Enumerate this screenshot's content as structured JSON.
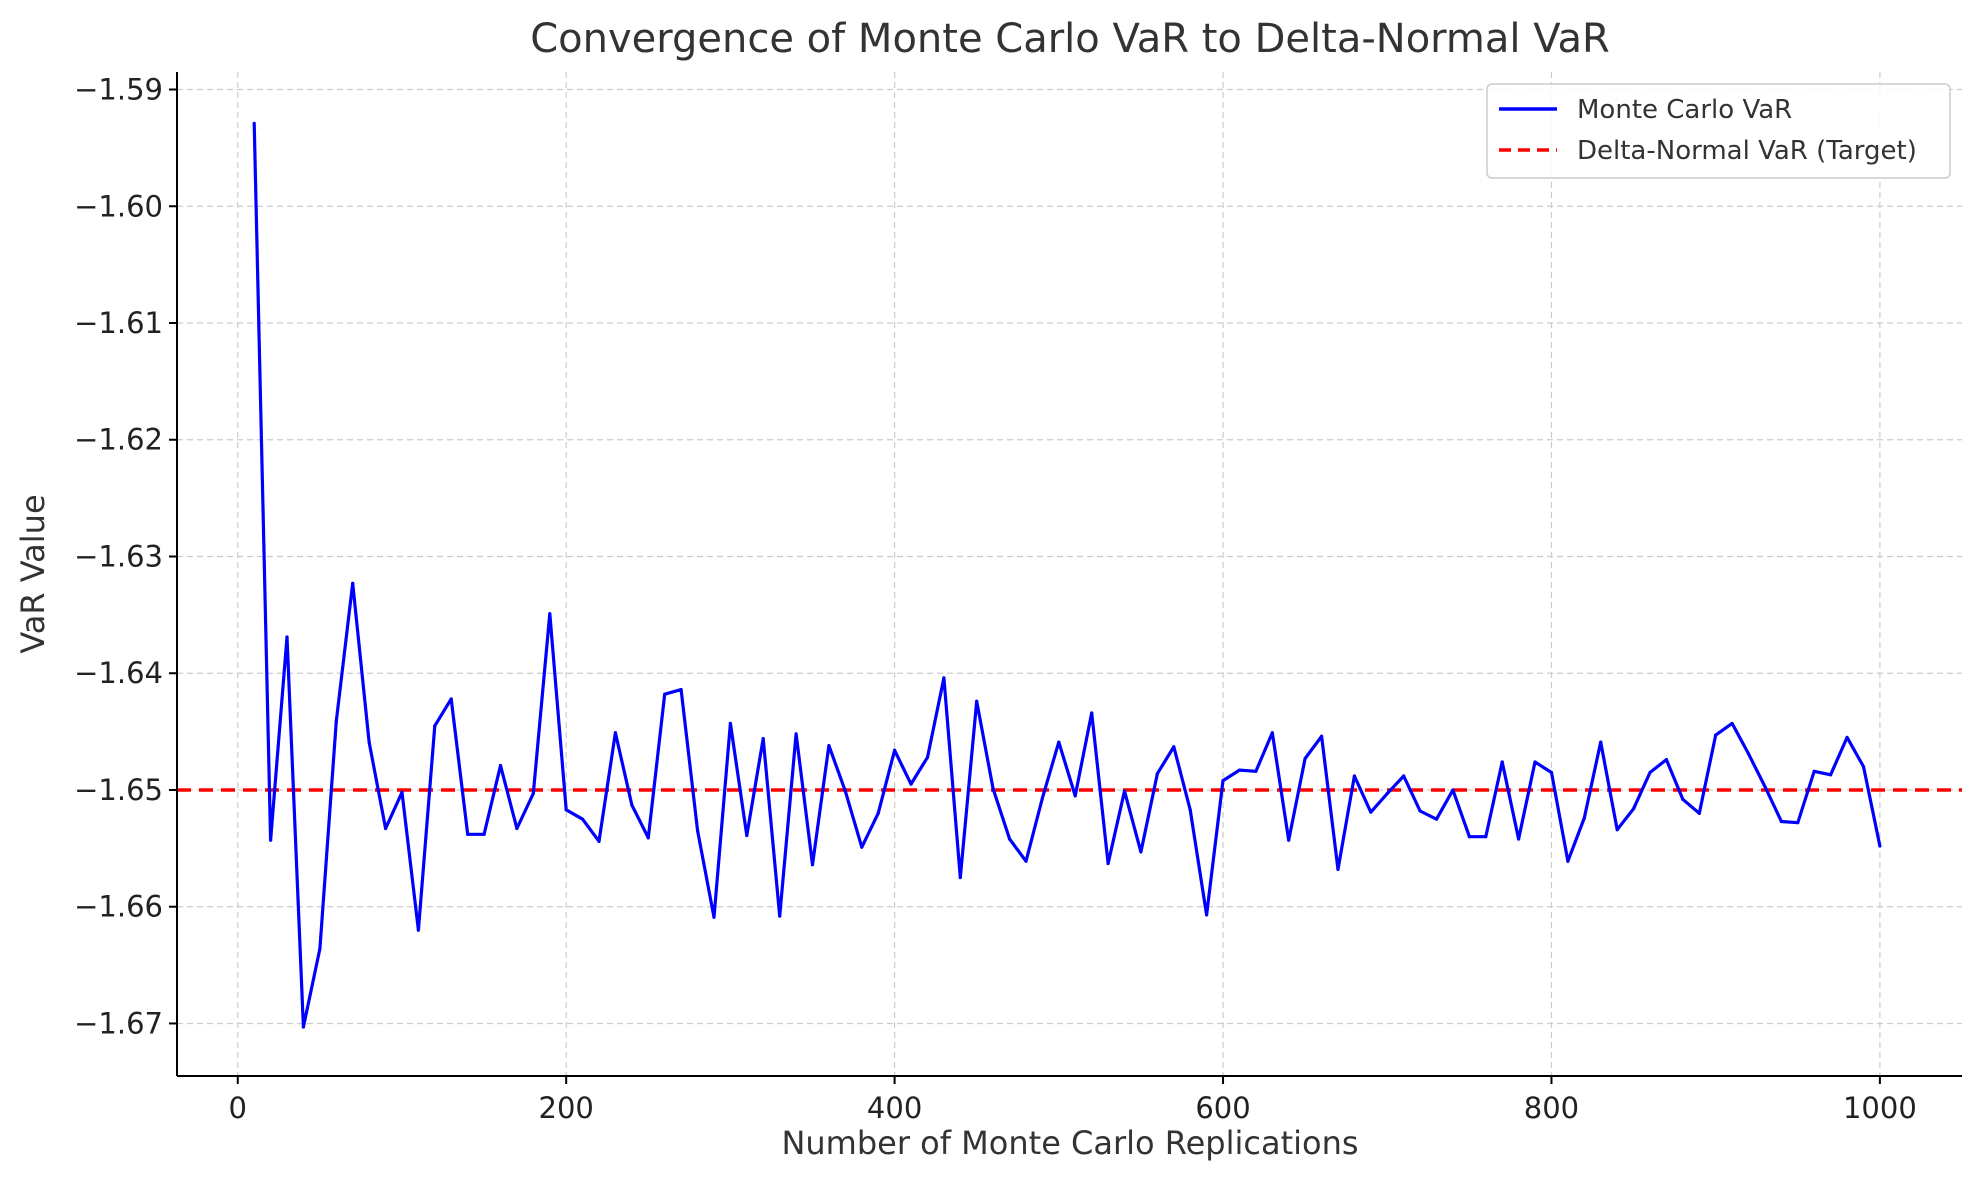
{
  "chart_data": {
    "type": "line",
    "title": "Convergence of Monte Carlo VaR to Delta-Normal VaR",
    "xlabel": "Number of Monte Carlo Replications",
    "ylabel": "VaR Value",
    "xlim": [
      -37,
      1050
    ],
    "ylim": [
      -1.6745,
      -1.5885
    ],
    "xticks": [
      0,
      200,
      400,
      600,
      800,
      1000
    ],
    "xtick_labels": [
      "0",
      "200",
      "400",
      "600",
      "800",
      "1000"
    ],
    "yticks": [
      -1.59,
      -1.6,
      -1.61,
      -1.62,
      -1.63,
      -1.64,
      -1.65,
      -1.66,
      -1.67
    ],
    "ytick_labels": [
      "−1.59",
      "−1.60",
      "−1.61",
      "−1.62",
      "−1.63",
      "−1.64",
      "−1.65",
      "−1.66",
      "−1.67"
    ],
    "grid": true,
    "legend_position": "top-right",
    "series": [
      {
        "name": "Monte Carlo VaR",
        "color": "#0000ff",
        "style": "solid",
        "x": [
          10,
          20,
          30,
          40,
          50,
          60,
          70,
          80,
          90,
          100,
          110,
          120,
          130,
          140,
          150,
          160,
          170,
          180,
          190,
          200,
          210,
          220,
          230,
          240,
          250,
          260,
          270,
          280,
          290,
          300,
          310,
          320,
          330,
          340,
          350,
          360,
          370,
          380,
          390,
          400,
          410,
          420,
          430,
          440,
          450,
          460,
          470,
          480,
          490,
          500,
          510,
          520,
          530,
          540,
          550,
          560,
          570,
          580,
          590,
          600,
          610,
          620,
          630,
          640,
          650,
          660,
          670,
          680,
          690,
          700,
          710,
          720,
          730,
          740,
          750,
          760,
          770,
          780,
          790,
          800,
          810,
          820,
          830,
          840,
          850,
          860,
          870,
          880,
          890,
          900,
          910,
          920,
          930,
          940,
          950,
          960,
          970,
          980,
          990,
          1000
        ],
        "values": [
          -1.5929,
          -1.6543,
          -1.6369,
          -1.6703,
          -1.6636,
          -1.6441,
          -1.6323,
          -1.6459,
          -1.6533,
          -1.6502,
          -1.662,
          -1.6445,
          -1.6422,
          -1.6538,
          -1.6538,
          -1.6479,
          -1.6533,
          -1.6503,
          -1.6349,
          -1.6517,
          -1.6525,
          -1.6544,
          -1.6451,
          -1.6513,
          -1.6541,
          -1.6418,
          -1.6414,
          -1.6535,
          -1.6609,
          -1.6443,
          -1.6539,
          -1.6456,
          -1.6608,
          -1.6452,
          -1.6564,
          -1.6462,
          -1.6501,
          -1.6549,
          -1.652,
          -1.6466,
          -1.6495,
          -1.6472,
          -1.6404,
          -1.6575,
          -1.6424,
          -1.6499,
          -1.6542,
          -1.6561,
          -1.6507,
          -1.6459,
          -1.6505,
          -1.6434,
          -1.6563,
          -1.6501,
          -1.6553,
          -1.6486,
          -1.6463,
          -1.6517,
          -1.6607,
          -1.6492,
          -1.6483,
          -1.6484,
          -1.6451,
          -1.6543,
          -1.6473,
          -1.6454,
          -1.6568,
          -1.6488,
          -1.6519,
          -1.6503,
          -1.6488,
          -1.6518,
          -1.6525,
          -1.65,
          -1.654,
          -1.654,
          -1.6476,
          -1.6542,
          -1.6476,
          -1.6485,
          -1.6561,
          -1.6524,
          -1.6459,
          -1.6534,
          -1.6516,
          -1.6485,
          -1.6474,
          -1.6508,
          -1.652,
          -1.6453,
          -1.6443,
          -1.6469,
          -1.6497,
          -1.6527,
          -1.6528,
          -1.6484,
          -1.6487,
          -1.6455,
          -1.648,
          -1.6548
        ]
      },
      {
        "name": "Delta-Normal VaR (Target)",
        "color": "#ff0000",
        "style": "dashed",
        "value": -1.65
      }
    ]
  }
}
